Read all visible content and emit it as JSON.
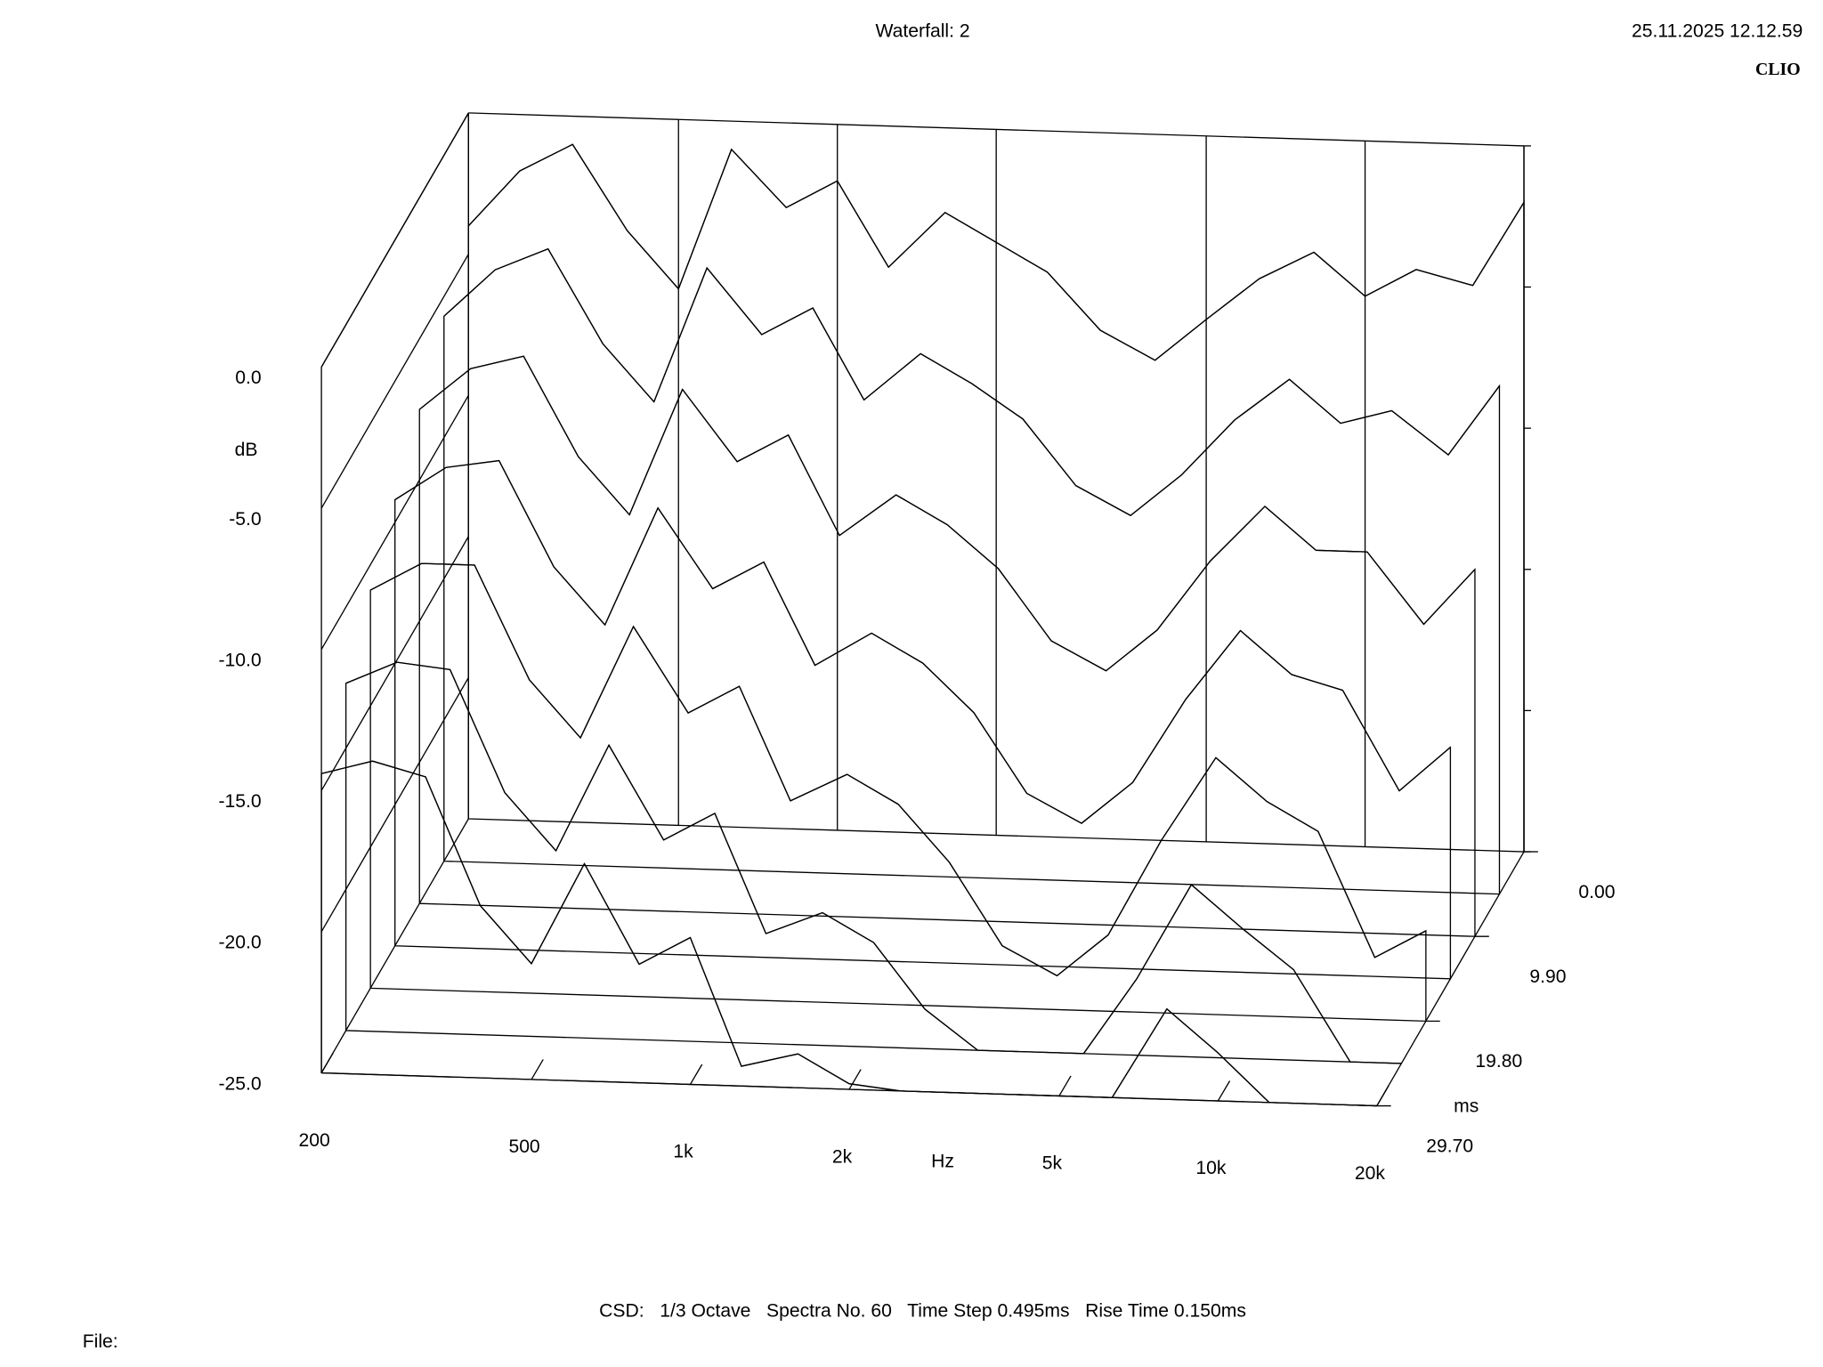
{
  "chart_data": {
    "type": "waterfall",
    "title": "Waterfall: 2",
    "timestamp": "25.11.2025 12.12.59",
    "brand": "CLIO",
    "footer": "CSD:   1/3 Octave   Spectra No. 60   Time Step 0.495ms   Rise Time 0.150ms",
    "file_label": "File:",
    "x_label": "Hz",
    "y_label": "dB",
    "z_label": "ms",
    "log_x": true,
    "color": "#000000",
    "xlim": [
      200,
      20000
    ],
    "xticks": [
      {
        "value": 200,
        "label": "200"
      },
      {
        "value": 500,
        "label": "500"
      },
      {
        "value": 1000,
        "label": "1k"
      },
      {
        "value": 2000,
        "label": "2k"
      },
      {
        "value": 5000,
        "label": "5k"
      },
      {
        "value": 10000,
        "label": "10k"
      },
      {
        "value": 20000,
        "label": "20k"
      }
    ],
    "ylim": [
      -25,
      0
    ],
    "yticks": [
      {
        "value": -25,
        "label": "-25.0"
      },
      {
        "value": -20,
        "label": "-20.0"
      },
      {
        "value": -15,
        "label": "-15.0"
      },
      {
        "value": -10,
        "label": "-10.0"
      },
      {
        "value": -5,
        "label": "-5.0"
      },
      {
        "value": 0,
        "label": "0.0"
      }
    ],
    "zlim": [
      0,
      29.7
    ],
    "zticks": [
      {
        "value": 0,
        "label": "0.00"
      },
      {
        "value": 9.9,
        "label": "9.90"
      },
      {
        "value": 19.8,
        "label": "19.80"
      },
      {
        "value": 29.7,
        "label": "29.70"
      }
    ],
    "x": [
      200,
      250,
      315,
      400,
      500,
      630,
      800,
      1000,
      1250,
      1600,
      2000,
      2500,
      3150,
      4000,
      5000,
      6300,
      8000,
      10000,
      12500,
      16000,
      20000
    ],
    "z": [
      0,
      4.95,
      9.9,
      14.85,
      19.8,
      24.75,
      29.7
    ],
    "series": [
      {
        "values": [
          -4,
          -2,
          -1,
          -4,
          -6,
          -1,
          -3,
          -2,
          -5,
          -3,
          -4,
          -5,
          -7,
          -8,
          -6.5,
          -5,
          -4,
          -5.5,
          -4.5,
          -5,
          -2
        ]
      },
      {
        "values": [
          -5.7,
          -4,
          -3.2,
          -6.5,
          -8.5,
          -3.7,
          -6,
          -5,
          -8.2,
          -6.5,
          -7.5,
          -8.7,
          -11,
          -12,
          -10.5,
          -8.5,
          -7,
          -8.5,
          -8,
          -9.5,
          -7
        ]
      },
      {
        "values": [
          -7.5,
          -6,
          -5.5,
          -9,
          -11,
          -6.5,
          -9,
          -8,
          -11.5,
          -10,
          -11,
          -12.5,
          -15,
          -16,
          -14.5,
          -12,
          -10,
          -11.5,
          -11.5,
          -14,
          -12
        ]
      },
      {
        "values": [
          -9.2,
          -8,
          -7.7,
          -11.4,
          -13.4,
          -9.2,
          -12,
          -11,
          -14.6,
          -13.4,
          -14.4,
          -16.1,
          -18.9,
          -19.9,
          -18.4,
          -15.4,
          -12.9,
          -14.4,
          -14.9,
          -18.4,
          -16.8
        ]
      },
      {
        "values": [
          -10.9,
          -9.9,
          -9.9,
          -13.9,
          -15.9,
          -11.9,
          -14.9,
          -13.9,
          -17.9,
          -16.9,
          -17.9,
          -19.9,
          -22.8,
          -23.8,
          -22.3,
          -18.9,
          -15.9,
          -17.4,
          -18.4,
          -22.8,
          -21.8
        ]
      },
      {
        "values": [
          -12.7,
          -11.9,
          -12.1,
          -16.4,
          -18.4,
          -14.6,
          -17.9,
          -16.9,
          -21.1,
          -20.3,
          -21.3,
          -23.6,
          -25,
          -25,
          -25,
          -22.3,
          -18.9,
          -20.4,
          -21.8,
          -25,
          -25
        ]
      },
      {
        "values": [
          -14.4,
          -13.9,
          -14.4,
          -18.9,
          -20.9,
          -17.3,
          -20.8,
          -19.8,
          -24.3,
          -23.8,
          -24.8,
          -25,
          -25,
          -25,
          -25,
          -25,
          -21.8,
          -23.3,
          -25,
          -25,
          -25
        ]
      }
    ]
  }
}
